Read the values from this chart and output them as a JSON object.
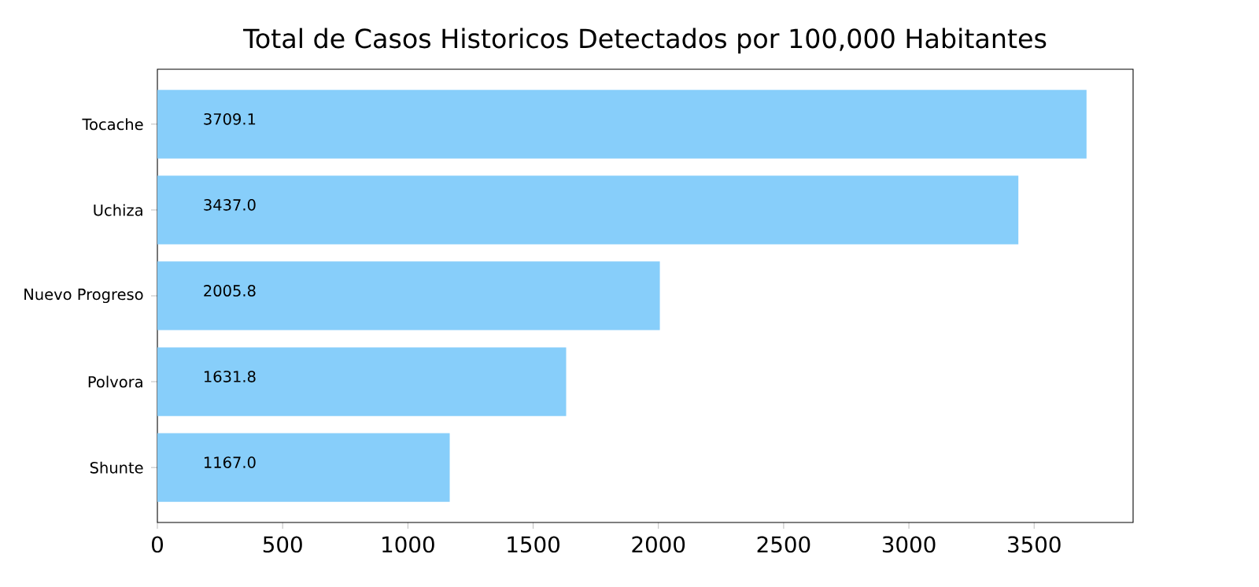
{
  "chart_data": {
    "type": "bar",
    "orientation": "horizontal",
    "title": "Total de Casos Historicos Detectados por 100,000 Habitantes",
    "categories": [
      "Tocache",
      "Uchiza",
      "Nuevo Progreso",
      "Polvora",
      "Shunte"
    ],
    "values": [
      3709.1,
      3437.0,
      2005.8,
      1631.8,
      1167.0
    ],
    "value_labels": [
      "3709.1",
      "3437.0",
      "2005.8",
      "1631.8",
      "1167.0"
    ],
    "color": "#87cefa",
    "xlim": [
      0,
      3895
    ],
    "xticks": [
      0,
      500,
      1000,
      1500,
      2000,
      2500,
      3000,
      3500
    ],
    "grid": false
  }
}
